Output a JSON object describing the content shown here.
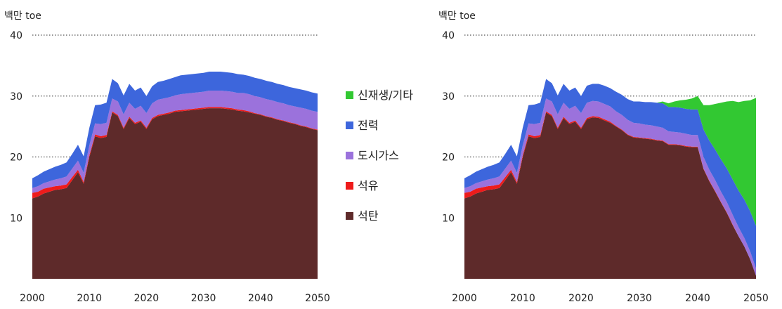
{
  "colors": {
    "coal": "#5e2a2a",
    "oil": "#ee1b1b",
    "gas": "#9b72dc",
    "power": "#3d66dc",
    "renewable": "#32c832"
  },
  "legend": [
    {
      "key": "renewable",
      "label": "신재생/기타"
    },
    {
      "key": "power",
      "label": "전력"
    },
    {
      "key": "gas",
      "label": "도시가스"
    },
    {
      "key": "oil",
      "label": "석유"
    },
    {
      "key": "coal",
      "label": "석탄"
    }
  ],
  "chart_data": [
    {
      "type": "area",
      "stacked": true,
      "unit_label": "백만 toe",
      "x": [
        2000,
        2001,
        2002,
        2003,
        2004,
        2005,
        2006,
        2007,
        2008,
        2009,
        2010,
        2011,
        2012,
        2013,
        2014,
        2015,
        2016,
        2017,
        2018,
        2019,
        2020,
        2021,
        2022,
        2023,
        2024,
        2025,
        2026,
        2027,
        2028,
        2029,
        2030,
        2031,
        2032,
        2033,
        2034,
        2035,
        2036,
        2037,
        2038,
        2039,
        2040,
        2041,
        2042,
        2043,
        2044,
        2045,
        2046,
        2047,
        2048,
        2049,
        2050
      ],
      "xticks": [
        2000,
        2010,
        2020,
        2030,
        2040,
        2050
      ],
      "yticks": [
        10,
        20,
        30,
        40
      ],
      "ylim": [
        0,
        40
      ],
      "series": [
        {
          "name": "석탄",
          "key": "coal",
          "values": [
            13.2,
            13.5,
            14.0,
            14.3,
            14.6,
            14.7,
            14.9,
            16.2,
            17.5,
            15.6,
            20.0,
            23.4,
            23.1,
            23.3,
            27.3,
            26.7,
            24.6,
            26.4,
            25.4,
            25.8,
            24.6,
            26.2,
            26.7,
            26.9,
            27.1,
            27.4,
            27.5,
            27.6,
            27.7,
            27.8,
            27.9,
            28.0,
            28.0,
            28.0,
            27.9,
            27.8,
            27.6,
            27.5,
            27.3,
            27.1,
            26.9,
            26.6,
            26.4,
            26.1,
            25.9,
            25.6,
            25.4,
            25.1,
            24.9,
            24.6,
            24.4
          ]
        },
        {
          "name": "석유",
          "key": "oil",
          "values": [
            0.9,
            0.8,
            0.8,
            0.7,
            0.6,
            0.6,
            0.6,
            0.5,
            0.4,
            0.3,
            0.3,
            0.3,
            0.3,
            0.3,
            0.2,
            0.2,
            0.2,
            0.2,
            0.2,
            0.2,
            0.2,
            0.2,
            0.2,
            0.2,
            0.2,
            0.2,
            0.2,
            0.2,
            0.2,
            0.2,
            0.2,
            0.2,
            0.2,
            0.2,
            0.2,
            0.2,
            0.2,
            0.2,
            0.2,
            0.1,
            0.1,
            0.1,
            0.1,
            0.1,
            0.1,
            0.1,
            0.1,
            0.1,
            0.1,
            0.1,
            0.1
          ]
        },
        {
          "name": "도시가스",
          "key": "gas",
          "values": [
            0.8,
            0.9,
            0.9,
            1.0,
            1.1,
            1.2,
            1.3,
            1.4,
            1.5,
            1.5,
            1.6,
            1.8,
            2.0,
            2.0,
            2.1,
            2.2,
            2.2,
            2.3,
            2.3,
            2.4,
            2.4,
            2.4,
            2.5,
            2.5,
            2.5,
            2.5,
            2.6,
            2.6,
            2.6,
            2.6,
            2.6,
            2.7,
            2.7,
            2.7,
            2.7,
            2.7,
            2.7,
            2.8,
            2.8,
            2.8,
            2.8,
            2.8,
            2.8,
            2.8,
            2.8,
            2.8,
            2.8,
            2.9,
            2.9,
            2.9,
            2.9
          ]
        },
        {
          "name": "전력",
          "key": "power",
          "values": [
            1.6,
            1.8,
            1.9,
            2.0,
            2.1,
            2.2,
            2.3,
            2.4,
            2.6,
            2.7,
            2.9,
            3.0,
            3.2,
            3.3,
            3.2,
            3.0,
            3.1,
            3.1,
            3.0,
            3.0,
            2.8,
            2.8,
            2.9,
            2.9,
            3.0,
            3.0,
            3.1,
            3.1,
            3.1,
            3.1,
            3.1,
            3.1,
            3.1,
            3.1,
            3.1,
            3.1,
            3.1,
            3.0,
            3.0,
            3.0,
            3.0,
            3.0,
            3.0,
            3.0,
            3.0,
            3.0,
            3.0,
            3.0,
            3.0,
            3.0,
            3.0
          ]
        }
      ]
    },
    {
      "type": "area",
      "stacked": true,
      "unit_label": "백만 toe",
      "x": [
        2000,
        2001,
        2002,
        2003,
        2004,
        2005,
        2006,
        2007,
        2008,
        2009,
        2010,
        2011,
        2012,
        2013,
        2014,
        2015,
        2016,
        2017,
        2018,
        2019,
        2020,
        2021,
        2022,
        2023,
        2024,
        2025,
        2026,
        2027,
        2028,
        2029,
        2030,
        2031,
        2032,
        2033,
        2034,
        2035,
        2036,
        2037,
        2038,
        2039,
        2040,
        2041,
        2042,
        2043,
        2044,
        2045,
        2046,
        2047,
        2048,
        2049,
        2050
      ],
      "xticks": [
        2000,
        2010,
        2020,
        2030,
        2040,
        2050
      ],
      "yticks": [
        10,
        20,
        30,
        40
      ],
      "ylim": [
        0,
        40
      ],
      "series": [
        {
          "name": "석탄",
          "key": "coal",
          "values": [
            13.2,
            13.5,
            14.0,
            14.3,
            14.6,
            14.7,
            14.9,
            16.2,
            17.5,
            15.6,
            20.0,
            23.4,
            23.1,
            23.3,
            27.3,
            26.7,
            24.6,
            26.4,
            25.4,
            25.8,
            24.6,
            26.2,
            26.5,
            26.4,
            26.0,
            25.6,
            25.0,
            24.4,
            23.6,
            23.2,
            23.1,
            23.0,
            22.9,
            22.7,
            22.6,
            22.0,
            22.0,
            21.9,
            21.7,
            21.6,
            21.6,
            18.0,
            16.0,
            14.3,
            12.5,
            10.8,
            8.8,
            7.0,
            5.3,
            3.2,
            0.5
          ]
        },
        {
          "name": "석유",
          "key": "oil",
          "values": [
            0.9,
            0.8,
            0.8,
            0.7,
            0.6,
            0.6,
            0.6,
            0.5,
            0.4,
            0.3,
            0.3,
            0.3,
            0.3,
            0.3,
            0.2,
            0.2,
            0.2,
            0.2,
            0.2,
            0.2,
            0.2,
            0.2,
            0.2,
            0.2,
            0.2,
            0.2,
            0.1,
            0.1,
            0.1,
            0.1,
            0.1,
            0.1,
            0.1,
            0.1,
            0.1,
            0.1,
            0.1,
            0.1,
            0.1,
            0.1,
            0.1,
            0.1,
            0.1,
            0.1,
            0.1,
            0.1,
            0.1,
            0.0,
            0.0,
            0.0,
            0.0
          ]
        },
        {
          "name": "도시가스",
          "key": "gas",
          "values": [
            0.8,
            0.9,
            0.9,
            1.0,
            1.1,
            1.2,
            1.3,
            1.4,
            1.5,
            1.5,
            1.6,
            1.8,
            2.0,
            2.0,
            2.1,
            2.2,
            2.2,
            2.3,
            2.3,
            2.4,
            2.4,
            2.5,
            2.5,
            2.5,
            2.5,
            2.5,
            2.4,
            2.4,
            2.4,
            2.3,
            2.3,
            2.2,
            2.2,
            2.2,
            2.1,
            2.1,
            2.0,
            2.0,
            2.0,
            1.9,
            1.9,
            1.9,
            1.8,
            1.8,
            1.7,
            1.7,
            1.6,
            1.5,
            1.4,
            1.3,
            1.2
          ]
        },
        {
          "name": "전력",
          "key": "power",
          "values": [
            1.6,
            1.8,
            1.9,
            2.0,
            2.1,
            2.2,
            2.3,
            2.4,
            2.6,
            2.7,
            2.9,
            3.0,
            3.2,
            3.3,
            3.2,
            3.0,
            3.1,
            3.1,
            3.0,
            3.0,
            2.8,
            2.8,
            2.8,
            2.9,
            3.0,
            3.0,
            3.2,
            3.3,
            3.4,
            3.5,
            3.6,
            3.7,
            3.8,
            3.9,
            4.0,
            4.0,
            4.1,
            4.1,
            4.1,
            4.2,
            4.2,
            4.5,
            4.8,
            5.0,
            5.3,
            5.5,
            5.8,
            6.0,
            6.3,
            6.6,
            7.0
          ]
        },
        {
          "name": "신재생/기타",
          "key": "renewable",
          "values": [
            0,
            0,
            0,
            0,
            0,
            0,
            0,
            0,
            0,
            0,
            0,
            0,
            0,
            0,
            0,
            0,
            0,
            0,
            0,
            0,
            0,
            0,
            0,
            0,
            0,
            0,
            0,
            0,
            0,
            0,
            0,
            0,
            0,
            0,
            0.3,
            0.6,
            0.9,
            1.2,
            1.5,
            1.8,
            2.2,
            4.0,
            5.8,
            7.5,
            9.3,
            11.0,
            12.9,
            14.5,
            16.2,
            18.2,
            21.0
          ]
        }
      ]
    }
  ]
}
